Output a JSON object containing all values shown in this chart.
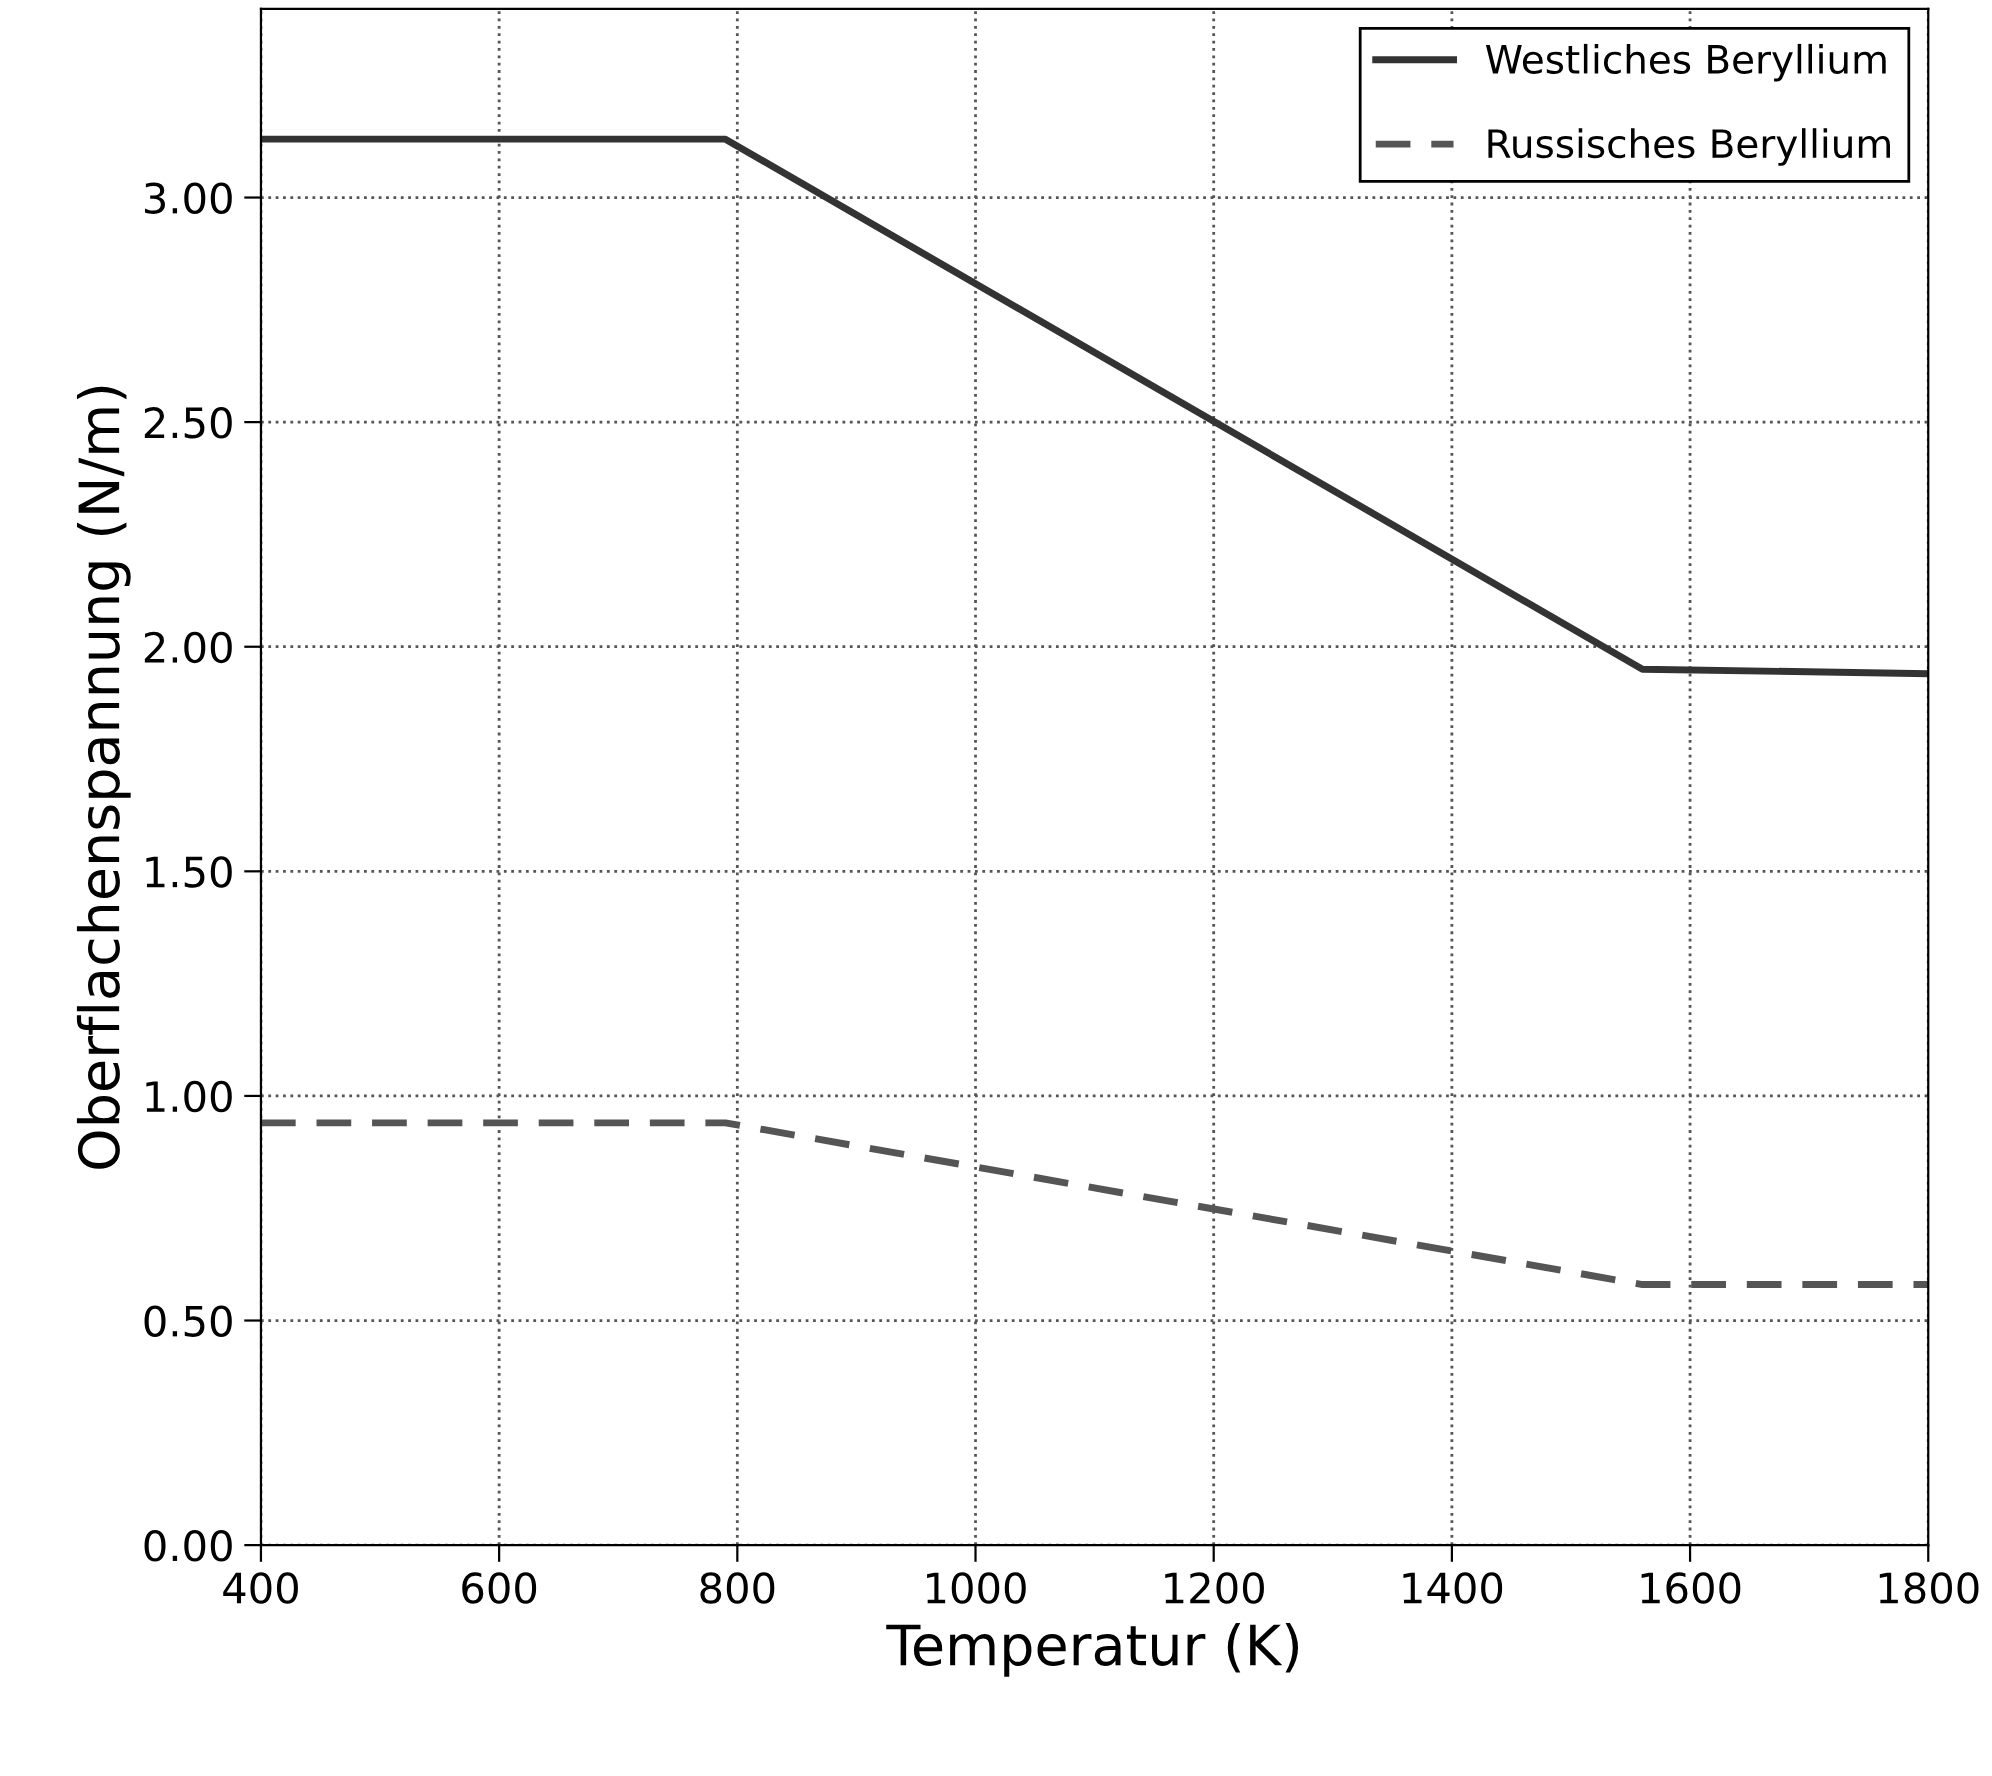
{
  "chart_data": {
    "type": "line",
    "xlabel": "Temperatur (K)",
    "ylabel": "Oberflachenspannung (N/m)",
    "xlim": [
      400,
      1800
    ],
    "xticks": [
      400,
      600,
      800,
      1000,
      1200,
      1400,
      1600,
      1800
    ],
    "ylim": [
      0,
      3.42
    ],
    "yticks": [
      {
        "value": 0,
        "label": "0.00"
      },
      {
        "value": 0.5,
        "label": "0.50"
      },
      {
        "value": 1,
        "label": "1.00"
      },
      {
        "value": 1.5,
        "label": "1.50"
      },
      {
        "value": 2,
        "label": "2.00"
      },
      {
        "value": 2.5,
        "label": "2.50"
      },
      {
        "value": 3,
        "label": "3.00"
      }
    ],
    "grid": true,
    "legend": "top right",
    "series": [
      {
        "name": "Westliches Beryllium",
        "color": "#333333",
        "line_style": "solid",
        "x": [
          400,
          790,
          1560,
          1800
        ],
        "values": [
          3.13,
          3.13,
          1.95,
          1.94
        ]
      },
      {
        "name": "Russisches Beryllium",
        "color": "#555555",
        "line_style": "dashed",
        "x": [
          400,
          790,
          1560,
          1800
        ],
        "values": [
          0.94,
          0.94,
          0.58,
          0.58
        ]
      }
    ]
  }
}
